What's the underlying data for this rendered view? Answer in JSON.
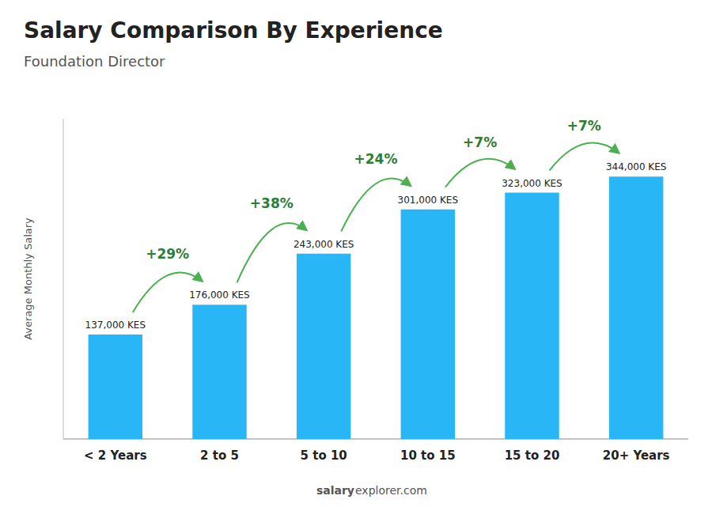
{
  "chart_data": {
    "type": "bar",
    "title": "Salary Comparison By Experience",
    "subtitle": "Foundation Director",
    "ylabel": "Average Monthly Salary",
    "categories": [
      "< 2 Years",
      "2 to 5",
      "5 to 10",
      "10 to 15",
      "15 to 20",
      "20+ Years"
    ],
    "values": [
      137000,
      176000,
      243000,
      301000,
      323000,
      344000
    ],
    "value_labels": [
      "137,000 KES",
      "176,000 KES",
      "243,000 KES",
      "301,000 KES",
      "323,000 KES",
      "344,000 KES"
    ],
    "pct_changes": [
      null,
      "+29%",
      "+38%",
      "+24%",
      "+7%",
      "+7%"
    ],
    "color": "#29b6f6",
    "ylim": [
      0,
      420000
    ],
    "data_labels": true,
    "tick_labels": "x",
    "grid": false,
    "footer": [
      "salary",
      "explorer.com"
    ]
  }
}
